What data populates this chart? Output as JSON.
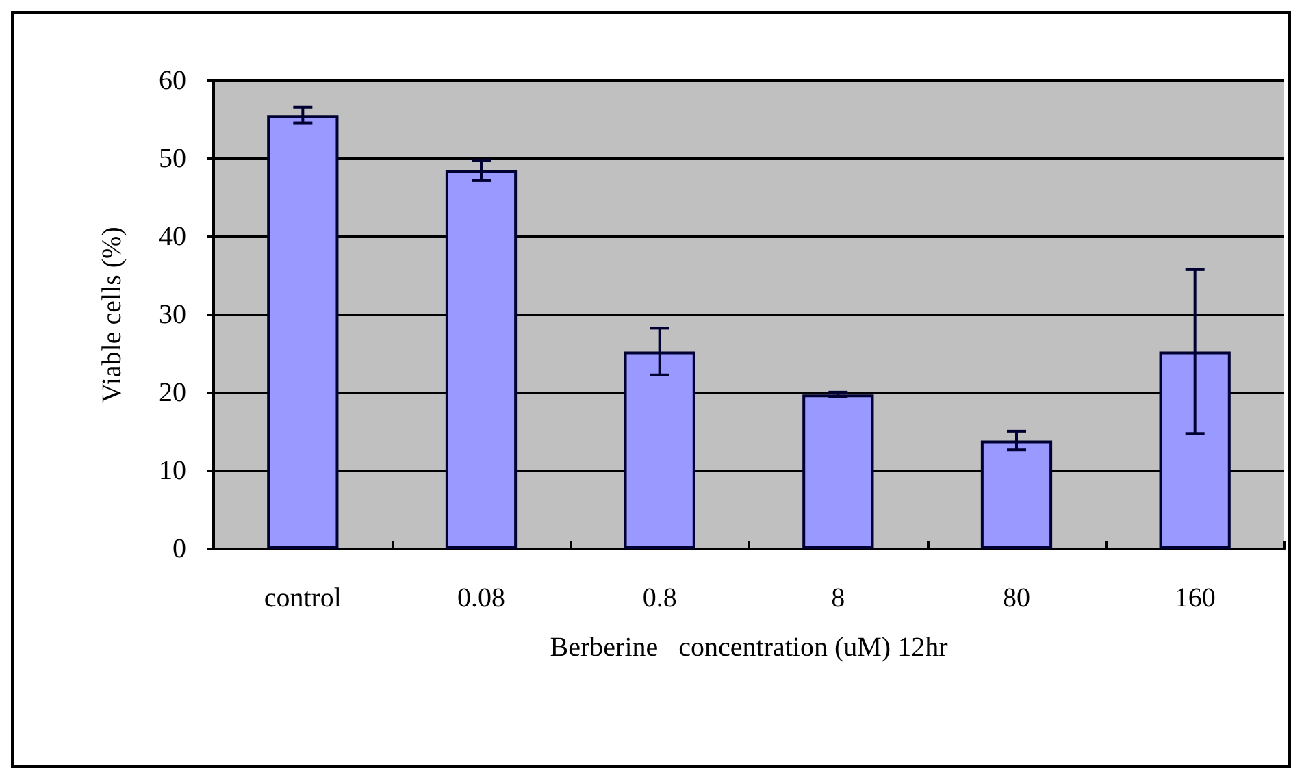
{
  "chart_data": {
    "type": "bar",
    "xlabel": "Berberine   concentration (uM) 12hr",
    "ylabel": "Viable cells (%)",
    "categories": [
      "control",
      "0.08",
      "0.8",
      "8",
      "80",
      "160"
    ],
    "values": [
      55.6,
      48.5,
      25.3,
      19.8,
      13.9,
      25.3
    ],
    "errors": [
      1,
      1.3,
      3,
      0.3,
      1.2,
      10.5
    ],
    "color": "#9999ff",
    "ylim": [
      0,
      60
    ],
    "yticks": [
      0,
      10,
      20,
      30,
      40,
      50,
      60
    ],
    "grid": "y"
  }
}
